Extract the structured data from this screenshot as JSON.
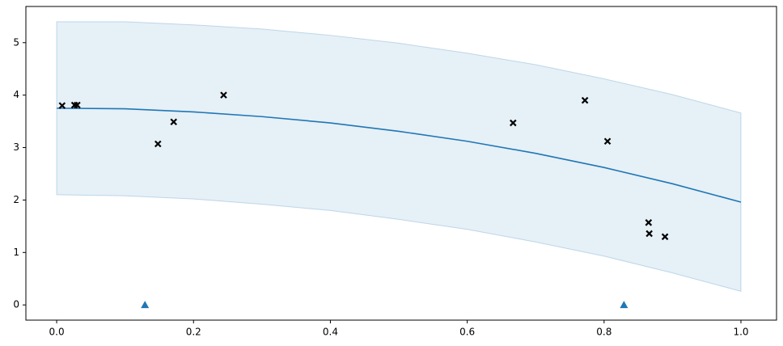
{
  "chart_data": {
    "type": "line",
    "x": [
      0,
      0.1,
      0.2,
      0.3,
      0.4,
      0.5,
      0.6,
      0.7,
      0.8,
      0.9,
      1.0
    ],
    "series": [
      {
        "color": "#1f77b4",
        "values": [
          3.75,
          3.74,
          3.68,
          3.59,
          3.47,
          3.31,
          3.12,
          2.89,
          2.62,
          2.31,
          1.96
        ]
      }
    ],
    "band": {
      "color": "#1f77b4",
      "upper": [
        5.4,
        5.4,
        5.34,
        5.26,
        5.14,
        4.99,
        4.8,
        4.58,
        4.31,
        4.01,
        3.66
      ],
      "lower": [
        2.1,
        2.08,
        2.02,
        1.92,
        1.8,
        1.63,
        1.44,
        1.2,
        0.93,
        0.61,
        0.26
      ]
    },
    "points": {
      "color": "#000000",
      "marker": "x",
      "x": [
        0.008,
        0.026,
        0.03,
        0.148,
        0.171,
        0.244,
        0.667,
        0.772,
        0.805,
        0.865,
        0.866,
        0.889
      ],
      "values": [
        3.8,
        3.81,
        3.81,
        3.07,
        3.49,
        4.0,
        3.47,
        3.9,
        3.12,
        1.57,
        1.36,
        1.3
      ]
    },
    "inducing": {
      "color": "#1f77b4",
      "marker": "triangle",
      "x": [
        0.129,
        0.829
      ],
      "values": [
        0,
        0
      ]
    },
    "xlim": [
      -0.045,
      1.052
    ],
    "ylim": [
      -0.29,
      5.69
    ],
    "xticks": [
      {
        "value": 0,
        "label": "0.0"
      },
      {
        "value": 0.2,
        "label": "0.2"
      },
      {
        "value": 0.4,
        "label": "0.4"
      },
      {
        "value": 0.6,
        "label": "0.6"
      },
      {
        "value": 0.8,
        "label": "0.8"
      },
      {
        "value": 1.0,
        "label": "1.0"
      }
    ],
    "yticks": [
      0,
      1,
      2,
      3,
      4,
      5
    ]
  }
}
